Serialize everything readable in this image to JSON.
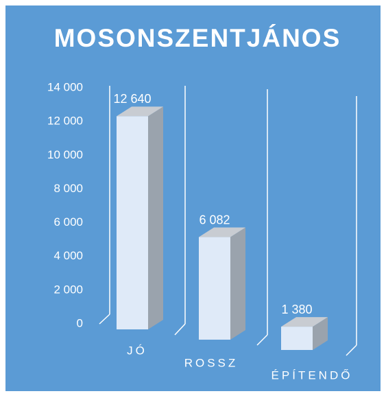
{
  "chart_data": {
    "type": "bar",
    "title": "MOSONSZENTJÁNOS",
    "categories": [
      "JÓ",
      "ROSSZ",
      "ÉPÍTENDŐ"
    ],
    "values": [
      12640,
      6082,
      1380
    ],
    "value_labels": [
      "12 640",
      "6 082",
      "1 380"
    ],
    "color": "#dfeaf8",
    "ylim": [
      0,
      14000
    ],
    "yticks": [
      0,
      {
        "value": 2000,
        "label": "2 000"
      },
      {
        "value": 4000,
        "label": "4 000"
      },
      {
        "value": 6000,
        "label": "6 000"
      },
      {
        "value": 8000,
        "label": "8 000"
      },
      {
        "value": 10000,
        "label": "10 000"
      },
      {
        "value": 12000,
        "label": "12 000"
      },
      {
        "value": 14000,
        "label": "14 000"
      }
    ]
  }
}
